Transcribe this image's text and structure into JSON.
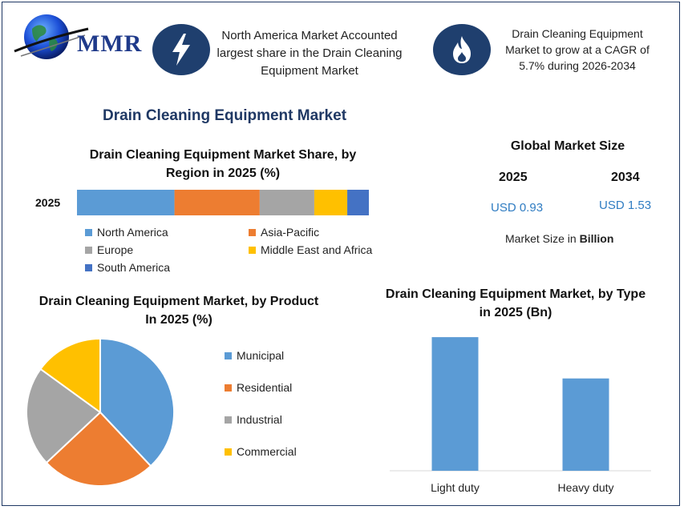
{
  "colors": {
    "north_america": "#5b9bd5",
    "asia_pacific": "#ed7d31",
    "europe": "#a5a5a5",
    "middle_east_africa": "#ffc000",
    "south_america": "#4472c4",
    "navy": "#1f3864",
    "value_blue": "#2f7cc2"
  },
  "logo": {
    "text": "MMR"
  },
  "header": {
    "stat1": {
      "icon": "lightning-icon",
      "text": "North America Market Accounted largest share in the Drain Cleaning Equipment Market"
    },
    "stat2": {
      "icon": "flame-icon",
      "text": "Drain Cleaning Equipment Market to grow at a CAGR of 5.7% during 2026-2034"
    }
  },
  "main_title": "Drain Cleaning Equipment Market",
  "market_size": {
    "title": "Global Market Size",
    "year1": "2025",
    "year2": "2034",
    "value1": "USD 0.93",
    "value2": "USD 1.53",
    "note_prefix": "Market Size in ",
    "note_bold": "Billion"
  },
  "chart_data": [
    {
      "type": "bar",
      "orientation": "horizontal-stacked",
      "title": "Drain Cleaning Equipment Market Share, by Region in 2025 (%)",
      "categories": [
        "2025"
      ],
      "series": [
        {
          "name": "North America",
          "values": [
            33.4
          ]
        },
        {
          "name": "Asia-Pacific",
          "values": [
            29.2
          ]
        },
        {
          "name": "Europe",
          "values": [
            18.7
          ]
        },
        {
          "name": "Middle East and Africa",
          "values": [
            11.3
          ]
        },
        {
          "name": "South America",
          "values": [
            7.4
          ]
        }
      ],
      "legend": "bottom"
    },
    {
      "type": "pie",
      "title": "Drain Cleaning Equipment Market, by Product In 2025 (%)",
      "labels": [
        "Municipal",
        "Residential",
        "Industrial",
        "Commercial"
      ],
      "values": [
        38,
        25,
        22,
        15
      ],
      "legend": "right"
    },
    {
      "type": "bar",
      "title": "Drain Cleaning Equipment Market, by Type in 2025 (Bn)",
      "categories": [
        "Light duty",
        "Heavy duty"
      ],
      "values": [
        0.55,
        0.38
      ],
      "ylim": [
        0,
        0.58
      ]
    }
  ]
}
